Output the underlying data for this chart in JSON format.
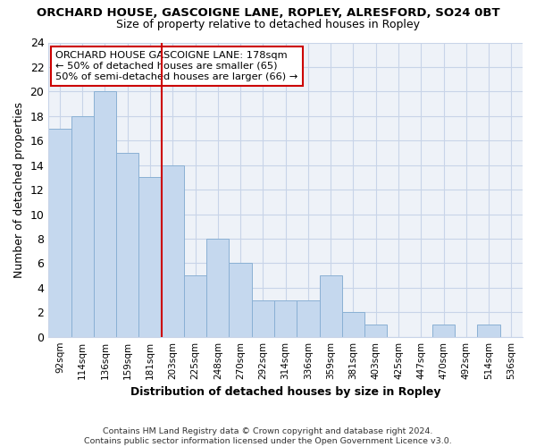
{
  "title": "ORCHARD HOUSE, GASCOIGNE LANE, ROPLEY, ALRESFORD, SO24 0BT",
  "subtitle": "Size of property relative to detached houses in Ropley",
  "xlabel": "Distribution of detached houses by size in Ropley",
  "ylabel": "Number of detached properties",
  "categories": [
    "92sqm",
    "114sqm",
    "136sqm",
    "159sqm",
    "181sqm",
    "203sqm",
    "225sqm",
    "248sqm",
    "270sqm",
    "292sqm",
    "314sqm",
    "336sqm",
    "359sqm",
    "381sqm",
    "403sqm",
    "425sqm",
    "447sqm",
    "470sqm",
    "492sqm",
    "514sqm",
    "536sqm"
  ],
  "values": [
    17,
    18,
    20,
    15,
    13,
    14,
    5,
    8,
    6,
    3,
    3,
    3,
    5,
    2,
    1,
    0,
    0,
    1,
    0,
    1,
    0
  ],
  "bar_color": "#c5d8ee",
  "bar_edge_color": "#8ab0d4",
  "vline_x": 4.5,
  "vline_color": "#cc0000",
  "annotation_text": "ORCHARD HOUSE GASCOIGNE LANE: 178sqm\n← 50% of detached houses are smaller (65)\n50% of semi-detached houses are larger (66) →",
  "annotation_box_color": "#ffffff",
  "annotation_box_edge": "#cc0000",
  "ylim": [
    0,
    24
  ],
  "yticks": [
    0,
    2,
    4,
    6,
    8,
    10,
    12,
    14,
    16,
    18,
    20,
    22,
    24
  ],
  "footer": "Contains HM Land Registry data © Crown copyright and database right 2024.\nContains public sector information licensed under the Open Government Licence v3.0.",
  "bg_color": "#eef2f8",
  "grid_color": "#c8d4e8"
}
